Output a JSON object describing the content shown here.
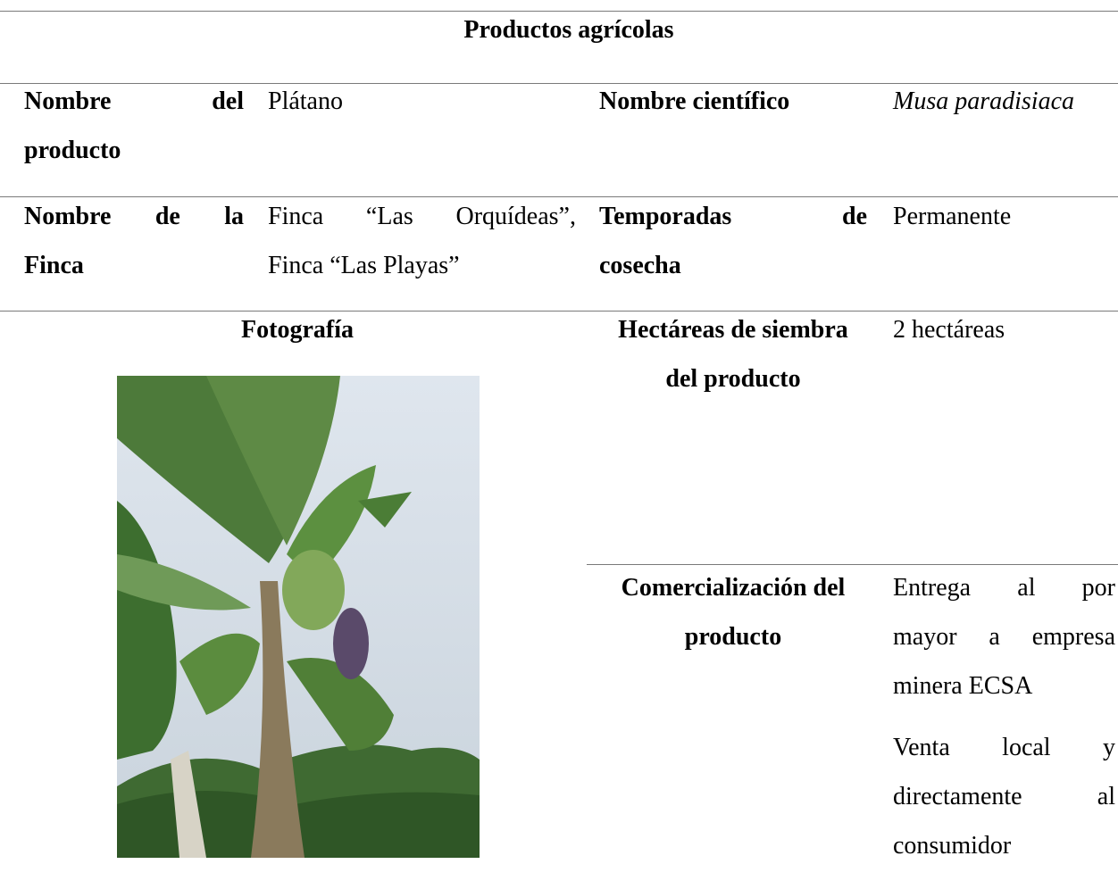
{
  "title": "Productos agrícolas",
  "rows": [
    {
      "label": [
        "Nombre del",
        "producto"
      ],
      "value": [
        "Plátano"
      ],
      "label2": [
        "Nombre científico"
      ],
      "value2": [
        "Musa paradisiaca"
      ]
    },
    {
      "label": [
        "Nombre de la",
        "Finca"
      ],
      "value": [
        "Finca “Las Orquídeas”,",
        "Finca “Las Playas”"
      ],
      "label2": [
        "Temporadas de",
        "cosecha"
      ],
      "value2": [
        "Permanente"
      ]
    }
  ],
  "photo_label": "Fotografía",
  "area_label": [
    "Hectáreas de siembra",
    "del producto"
  ],
  "area": "2 hectáreas",
  "commerce_label": [
    "Comercialización del",
    "producto"
  ],
  "commerce": [
    [
      "Entrega al por",
      "mayor a empresa",
      "minera ECSA"
    ],
    [
      "Venta local y",
      "directamente al",
      "consumidor"
    ]
  ]
}
